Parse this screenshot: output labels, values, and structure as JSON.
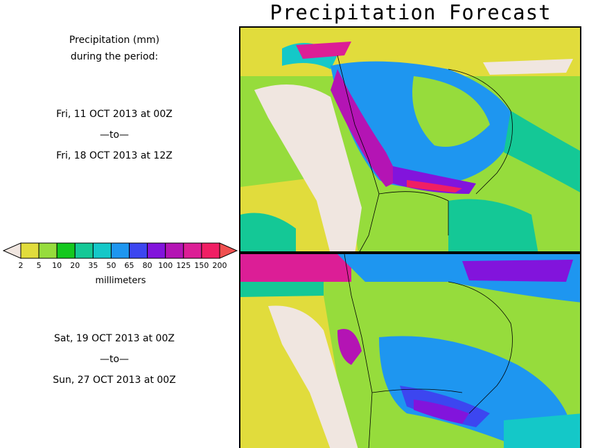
{
  "title": "Precipitation Forecast",
  "period_label": {
    "line1": "Precipitation (mm)",
    "line2": "during the period:"
  },
  "period1": {
    "start": "Fri, 11 OCT 2013 at 00Z",
    "sep": "—to—",
    "end": "Fri, 18 OCT 2013 at 12Z"
  },
  "period2": {
    "start": "Sat, 19 OCT 2013 at 00Z",
    "sep": "—to—",
    "end": "Sun, 27 OCT 2013 at 00Z"
  },
  "legend": {
    "units": "millimeters",
    "ticks": [
      "2",
      "5",
      "10",
      "20",
      "35",
      "50",
      "65",
      "80",
      "100",
      "125",
      "150",
      "200"
    ],
    "colors": [
      "#f0e6e0",
      "#e1dc3c",
      "#96dc3c",
      "#14c81e",
      "#14c896",
      "#14c8c8",
      "#1e96f0",
      "#3c46f0",
      "#8214dc",
      "#b414b4",
      "#dc1e96",
      "#f01e64",
      "#f05050"
    ]
  },
  "colors": {
    "land_bg": "#96dc3c",
    "dry": "#f0e6e0",
    "yellow": "#e1dc3c"
  }
}
